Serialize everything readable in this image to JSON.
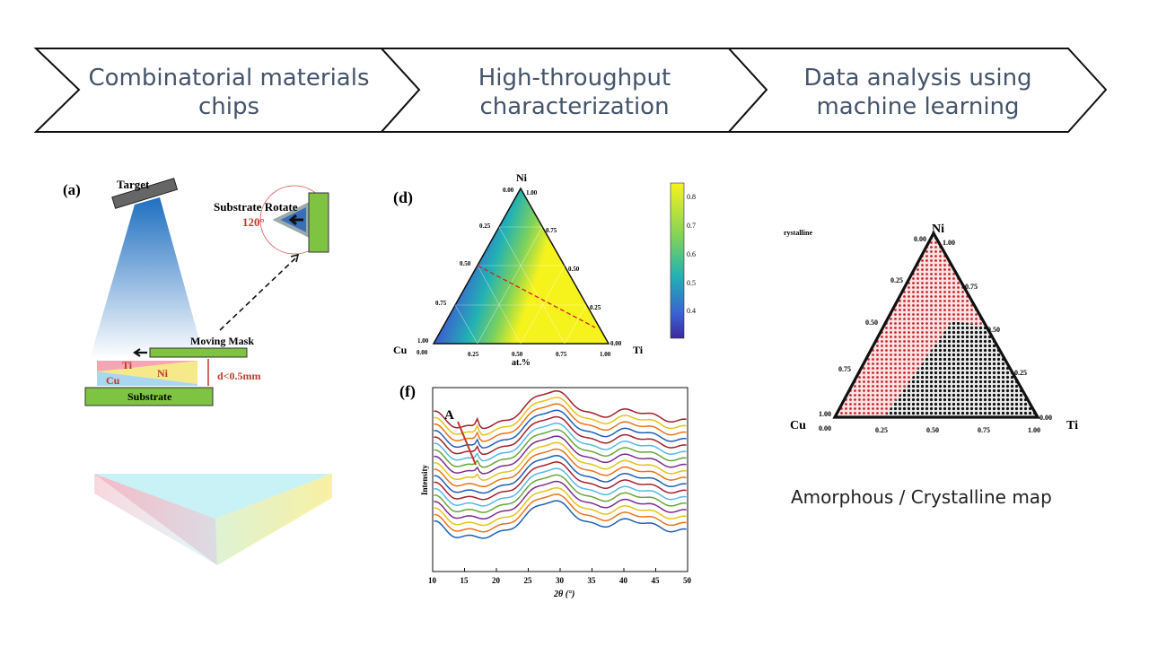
{
  "steps": [
    {
      "label": "Combinatorial materials\nchips"
    },
    {
      "label": "High-throughput\ncharacterization"
    },
    {
      "label": "Data analysis using\nmachine learning"
    }
  ],
  "panel_a": {
    "tag": "(a)",
    "target": "Target",
    "substrate_rotate": "Substrate Rotate",
    "angle": "120°",
    "moving_mask": "Moving Mask",
    "gap": "d<0.5mm",
    "substrate": "Substrate",
    "elements": [
      "Ti",
      "Ni",
      "Cu"
    ]
  },
  "panel_d": {
    "tag": "(d)",
    "apex_top": "Ni",
    "apex_left": "Cu",
    "apex_right": "Ti",
    "axis_label": "at.%",
    "ticks": [
      "0.00",
      "0.25",
      "0.50",
      "0.75",
      "1.00"
    ],
    "colorbar_ticks": [
      "0.8",
      "0.7",
      "0.6",
      "0.5",
      "0.4"
    ],
    "colors": {
      "low": "#3b2a9a",
      "mid": "#22b2b4",
      "high": "#f6f31c"
    }
  },
  "panel_f": {
    "tag": "(f)",
    "peak_label": "A",
    "ylabel": "Intensity",
    "xlabel": "2θ (°)",
    "xticks": [
      "10",
      "15",
      "20",
      "25",
      "30",
      "35",
      "40",
      "45",
      "50"
    ]
  },
  "panel_ml": {
    "legend_fragment": "rystalline",
    "apex_top": "Ni",
    "apex_left": "Cu",
    "apex_right": "Ti",
    "ticks": [
      "0.00",
      "0.25",
      "0.50",
      "0.75",
      "1.00"
    ],
    "caption": "Amorphous / Crystalline map",
    "colors": {
      "amorphous": "#c8262f",
      "crystalline": "#111111"
    }
  },
  "chart_data": [
    {
      "type": "ternary",
      "apexes": [
        "Ni",
        "Cu",
        "Ti"
      ],
      "axis_label": "at.%",
      "ticks": [
        0,
        0.25,
        0.5,
        0.75,
        1.0
      ],
      "colorbar_range": [
        0.35,
        0.85
      ],
      "colorbar_ticks": [
        0.4,
        0.5,
        0.6,
        0.7,
        0.8
      ]
    },
    {
      "type": "line",
      "xlabel": "2θ (°)",
      "ylabel": "Intensity",
      "xlim": [
        10,
        50
      ],
      "series_count": 18,
      "peak_annotation": {
        "label": "A",
        "x": 17
      }
    },
    {
      "type": "scatter",
      "apexes": [
        "Ni",
        "Cu",
        "Ti"
      ],
      "ticks": [
        0,
        0.25,
        0.5,
        0.75,
        1.0
      ],
      "classes": [
        "Amorphous",
        "Crystalline"
      ]
    }
  ]
}
